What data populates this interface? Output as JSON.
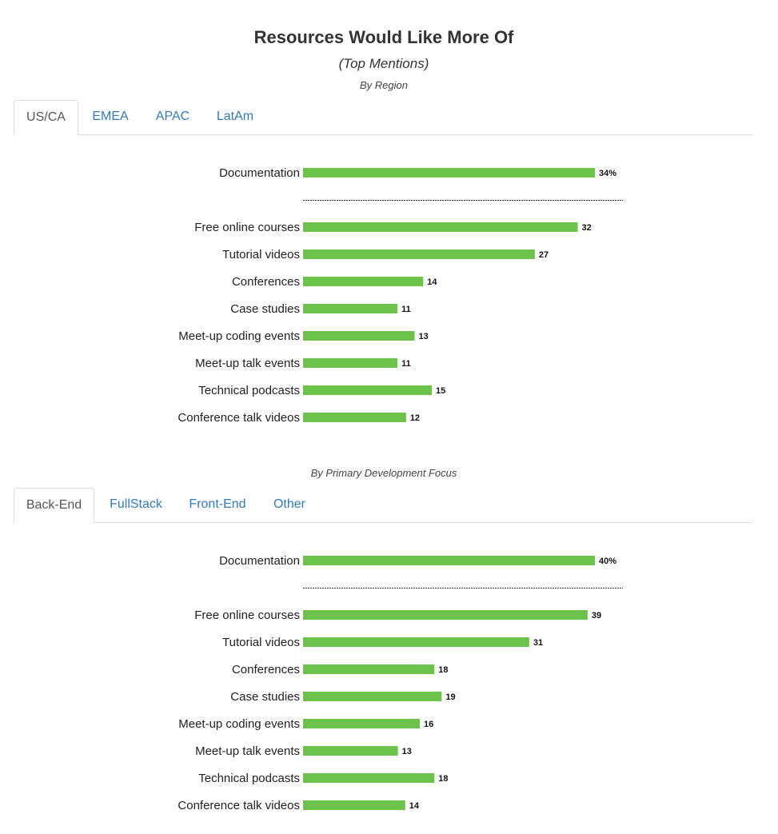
{
  "title": "Resources Would Like More Of",
  "subtitle": "(Top Mentions)",
  "sections": [
    {
      "caption": "By Region",
      "tabs": [
        {
          "label": "US/CA",
          "active": true
        },
        {
          "label": "EMEA",
          "active": false
        },
        {
          "label": "APAC",
          "active": false
        },
        {
          "label": "LatAm",
          "active": false
        }
      ]
    },
    {
      "caption": "By Primary Development Focus",
      "tabs": [
        {
          "label": "Back-End",
          "active": true
        },
        {
          "label": "FullStack",
          "active": false
        },
        {
          "label": "Front-End",
          "active": false
        },
        {
          "label": "Other",
          "active": false
        }
      ]
    }
  ],
  "colors": {
    "bar": "#6cc24a",
    "tab_link": "#337ab7",
    "tab_active": "#555555",
    "separator": "#333333"
  },
  "chart_data": [
    {
      "type": "bar",
      "orientation": "horizontal",
      "title": "",
      "categories": [
        "Documentation",
        "Free online courses",
        "Tutorial videos",
        "Conferences",
        "Case studies",
        "Meet-up coding events",
        "Meet-up talk events",
        "Technical podcasts",
        "Conference talk videos"
      ],
      "values": [
        34,
        32,
        27,
        14,
        11,
        13,
        11,
        15,
        12
      ],
      "value_labels": [
        "34%",
        "32",
        "27",
        "14",
        "11",
        "13",
        "11",
        "15",
        "12"
      ],
      "xlim": [
        0,
        34
      ]
    },
    {
      "type": "bar",
      "orientation": "horizontal",
      "title": "",
      "categories": [
        "Documentation",
        "Free online courses",
        "Tutorial videos",
        "Conferences",
        "Case studies",
        "Meet-up coding events",
        "Meet-up talk events",
        "Technical podcasts",
        "Conference talk videos"
      ],
      "values": [
        40,
        39,
        31,
        18,
        19,
        16,
        13,
        18,
        14
      ],
      "value_labels": [
        "40%",
        "39",
        "31",
        "18",
        "19",
        "16",
        "13",
        "18",
        "14"
      ],
      "xlim": [
        0,
        40
      ]
    }
  ]
}
